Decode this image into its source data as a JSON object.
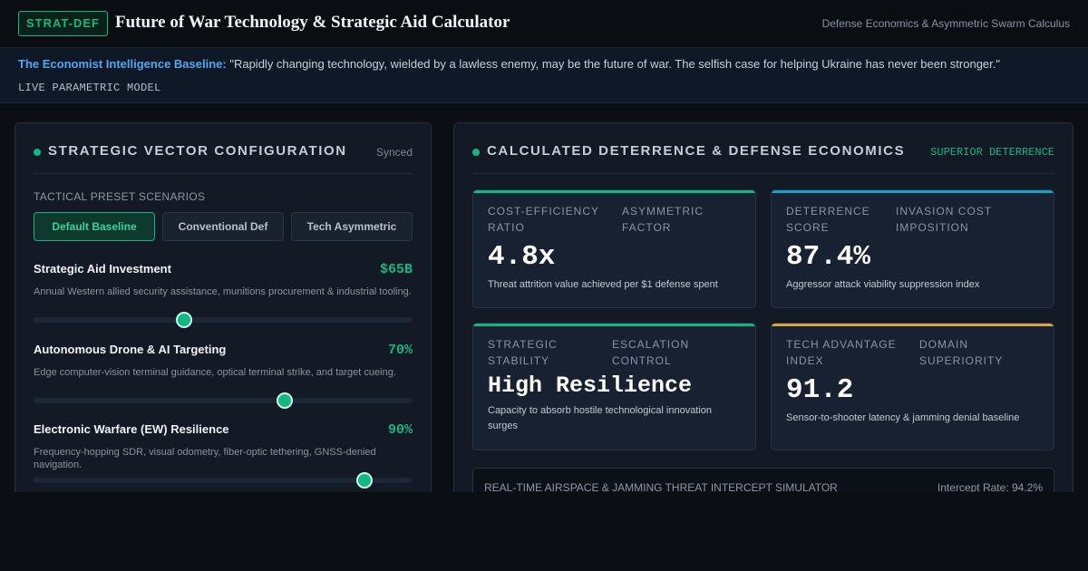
{
  "header": {
    "badge": "STRAT-DEF",
    "title": "Future of War Technology & Strategic Aid Calculator",
    "subtitle": "Defense Economics & Asymmetric Swarm Calculus"
  },
  "banner": {
    "source": "The Economist Intelligence Baseline:",
    "quote": " \"Rapidly changing technology, wielded by a lawless enemy, may be the future of war. The selfish case for helping Ukraine has never been stronger.\"",
    "tag": "LIVE PARAMETRIC MODEL"
  },
  "config": {
    "title": "STRATEGIC VECTOR CONFIGURATION",
    "status": "Synced",
    "presets_label": "TACTICAL PRESET SCENARIOS",
    "presets": [
      "Default Baseline",
      "Conventional Def",
      "Tech Asymmetric"
    ],
    "active_preset": "Default Baseline",
    "params": [
      {
        "name": "Strategic Aid Investment",
        "value": "$65B",
        "desc": "Annual Western allied security assistance, munitions procurement & industrial tooling.",
        "level": 0.398
      },
      {
        "name": "Autonomous Drone & AI Targeting",
        "value": "70%",
        "desc": "Edge computer-vision terminal guidance, optical terminal strike, and target cueing.",
        "level": 0.662
      },
      {
        "name": "Electronic Warfare (EW) Resilience",
        "value": "90%",
        "desc": "Frequency-hopping SDR, visual odometry, fiber-optic tethering, GNSS-denied navigation.",
        "level": 0.873
      }
    ]
  },
  "results": {
    "title": "CALCULATED DETERRENCE & DEFENSE ECONOMICS",
    "status": "SUPERIOR DETERRENCE",
    "cards": [
      {
        "label_a": "COST-EFFICIENCY RATIO",
        "label_b": "ASYMMETRIC FACTOR",
        "value": "4.8x",
        "desc": "Threat attrition value achieved per $1 defense spent",
        "accent": "#10b981"
      },
      {
        "label_a": "DETERRENCE SCORE",
        "label_b": "INVASION COST IMPOSITION",
        "value": "87.4%",
        "desc": "Aggressor attack viability suppression index",
        "accent": "#0ea5c6"
      },
      {
        "label_a": "STRATEGIC STABILITY",
        "label_b": "ESCALATION CONTROL",
        "value": "High Resilience",
        "desc": "Capacity to absorb hostile technological innovation surges",
        "accent": "#10b981"
      },
      {
        "label_a": "TECH ADVANTAGE INDEX",
        "label_b": "DOMAIN SUPERIORITY",
        "value": "91.2",
        "desc": "Sensor-to-shooter latency & jamming denial baseline",
        "accent": "#e0a23a"
      }
    ],
    "simulator": {
      "title": "REAL-TIME AIRSPACE & JAMMING THREAT INTERCEPT SIMULATOR",
      "rate": "Intercept Rate: 94.2%"
    }
  }
}
